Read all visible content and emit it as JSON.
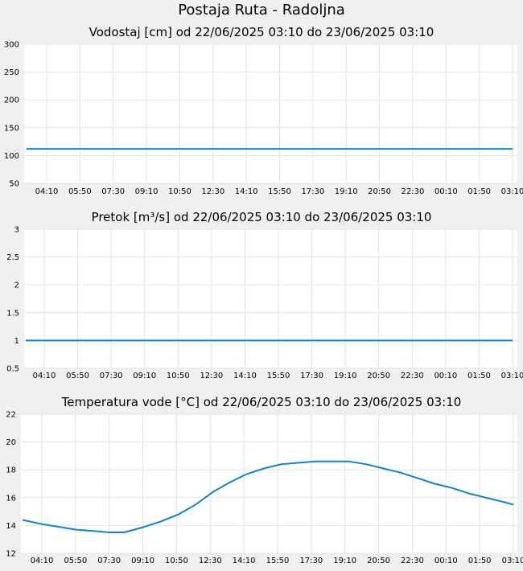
{
  "title": "Postaja Ruta - Radoljna",
  "colors": {
    "line": "#0a84d6",
    "plot_bg": "#ffffff",
    "page_bg": "#f0f0f0",
    "grid": "#e3e3e3"
  },
  "chart_data": [
    {
      "type": "line",
      "title": "Vodostaj [cm] od 22/06/2025 03:10 do 23/06/2025 03:10",
      "xlabel": "",
      "ylabel": "",
      "x_ticks": [
        "04:10",
        "05:50",
        "07:30",
        "09:10",
        "10:50",
        "12:30",
        "14:10",
        "15:50",
        "17:30",
        "19:10",
        "20:50",
        "22:30",
        "00:10",
        "01:50",
        "03:10"
      ],
      "y_ticks": [
        "300",
        "250",
        "200",
        "150",
        "100",
        "50"
      ],
      "ylim": [
        50,
        300
      ],
      "grid": true,
      "series": [
        {
          "x": [
            "22/06/2025 03:10",
            "23/06/2025 03:10"
          ],
          "y": [
            112,
            112
          ]
        }
      ]
    },
    {
      "type": "line",
      "title": "Pretok [m³/s] od 22/06/2025 03:10 do 23/06/2025 03:10",
      "xlabel": "",
      "ylabel": "",
      "x_ticks": [
        "04:10",
        "05:50",
        "07:30",
        "09:10",
        "10:50",
        "12:30",
        "14:10",
        "15:50",
        "17:30",
        "19:10",
        "20:50",
        "22:30",
        "00:10",
        "01:50",
        "03:10"
      ],
      "y_ticks": [
        "3",
        "2.5",
        "2",
        "1.5",
        "1",
        "0.5"
      ],
      "ylim": [
        0.5,
        3
      ],
      "grid": true,
      "series": [
        {
          "x": [
            "22/06/2025 03:10",
            "23/06/2025 03:10"
          ],
          "y": [
            1,
            1
          ]
        }
      ]
    },
    {
      "type": "line",
      "title": "Temperatura vode [°C] od 22/06/2025 03:10 do 23/06/2025 03:10",
      "xlabel": "",
      "ylabel": "",
      "x_ticks": [
        "04:10",
        "05:50",
        "07:30",
        "09:10",
        "10:50",
        "12:30",
        "14:10",
        "15:50",
        "17:30",
        "19:10",
        "20:50",
        "22:30",
        "00:10",
        "01:50",
        "03:10"
      ],
      "y_ticks": [
        "22",
        "20",
        "18",
        "16",
        "14",
        "12"
      ],
      "ylim": [
        12,
        22
      ],
      "grid": true,
      "series": [
        {
          "x": [
            "22/06/2025 03:10",
            "22/06/2025 04:10",
            "22/06/2025 05:00",
            "22/06/2025 05:50",
            "22/06/2025 06:40",
            "22/06/2025 07:30",
            "22/06/2025 08:10",
            "22/06/2025 08:40",
            "22/06/2025 09:10",
            "22/06/2025 10:00",
            "22/06/2025 10:50",
            "22/06/2025 11:40",
            "22/06/2025 12:30",
            "22/06/2025 13:20",
            "22/06/2025 14:10",
            "22/06/2025 15:00",
            "22/06/2025 15:50",
            "22/06/2025 16:40",
            "22/06/2025 17:30",
            "22/06/2025 18:20",
            "22/06/2025 19:10",
            "22/06/2025 20:00",
            "22/06/2025 20:50",
            "22/06/2025 21:40",
            "22/06/2025 22:30",
            "22/06/2025 23:20",
            "23/06/2025 00:10",
            "23/06/2025 01:00",
            "23/06/2025 01:50",
            "23/06/2025 02:40",
            "23/06/2025 03:10"
          ],
          "y": [
            14.4,
            14.1,
            13.9,
            13.7,
            13.6,
            13.5,
            13.5,
            13.7,
            13.9,
            14.3,
            14.8,
            15.5,
            16.4,
            17.1,
            17.7,
            18.1,
            18.4,
            18.5,
            18.6,
            18.6,
            18.6,
            18.4,
            18.1,
            17.8,
            17.4,
            17.0,
            16.7,
            16.3,
            16.0,
            15.7,
            15.5
          ]
        }
      ]
    }
  ]
}
